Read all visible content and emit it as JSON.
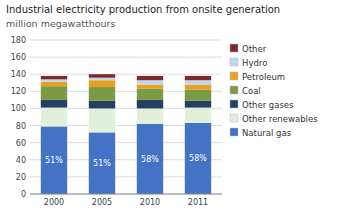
{
  "chart_data": {
    "type": "bar",
    "stacked": true,
    "title": "Industrial electricity production from onsite generation",
    "subtitle": "million megawatthours",
    "categories": [
      "2000",
      "2005",
      "2010",
      "2011"
    ],
    "series": [
      {
        "name": "Natural gas",
        "color": "#4472C4",
        "values": [
          79,
          72,
          82,
          83
        ]
      },
      {
        "name": "Other renewables",
        "color": "#E2EFDA",
        "values": [
          22,
          28,
          18,
          18
        ]
      },
      {
        "name": "Other gases",
        "color": "#243F60",
        "values": [
          9,
          9,
          10,
          8
        ]
      },
      {
        "name": "Coal",
        "color": "#7B9A44",
        "values": [
          16,
          16,
          13,
          13
        ]
      },
      {
        "name": "Petroleum",
        "color": "#E8A024",
        "values": [
          5,
          8,
          5,
          6
        ]
      },
      {
        "name": "Hydro",
        "color": "#BDD7EE",
        "values": [
          3,
          3,
          5,
          5
        ]
      },
      {
        "name": "Other",
        "color": "#7B2929",
        "values": [
          4,
          4,
          5,
          5
        ]
      }
    ],
    "annotations": [
      "51%",
      "51%",
      "58%",
      "58%"
    ],
    "ylim": [
      0,
      180
    ],
    "yticks": [
      0,
      20,
      40,
      60,
      80,
      100,
      120,
      140,
      160,
      180
    ],
    "grid": true,
    "legend": "right"
  }
}
